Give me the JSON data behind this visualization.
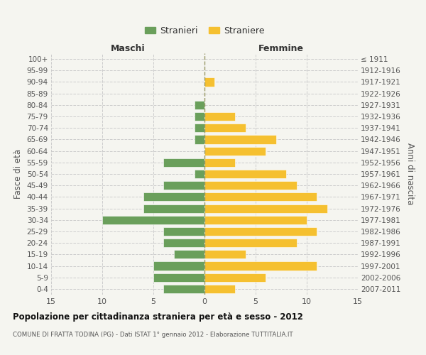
{
  "age_groups": [
    "100+",
    "95-99",
    "90-94",
    "85-89",
    "80-84",
    "75-79",
    "70-74",
    "65-69",
    "60-64",
    "55-59",
    "50-54",
    "45-49",
    "40-44",
    "35-39",
    "30-34",
    "25-29",
    "20-24",
    "15-19",
    "10-14",
    "5-9",
    "0-4"
  ],
  "birth_years": [
    "≤ 1911",
    "1912-1916",
    "1917-1921",
    "1922-1926",
    "1927-1931",
    "1932-1936",
    "1937-1941",
    "1942-1946",
    "1947-1951",
    "1952-1956",
    "1957-1961",
    "1962-1966",
    "1967-1971",
    "1972-1976",
    "1977-1981",
    "1982-1986",
    "1987-1991",
    "1992-1996",
    "1997-2001",
    "2002-2006",
    "2007-2011"
  ],
  "males": [
    0,
    0,
    0,
    0,
    1,
    1,
    1,
    1,
    0,
    4,
    1,
    4,
    6,
    6,
    10,
    4,
    4,
    3,
    5,
    5,
    4
  ],
  "females": [
    0,
    0,
    1,
    0,
    0,
    3,
    4,
    7,
    6,
    3,
    8,
    9,
    11,
    12,
    10,
    11,
    9,
    4,
    11,
    6,
    3
  ],
  "male_color": "#6a9f5b",
  "female_color": "#f5c030",
  "background_color": "#f5f5f0",
  "grid_color": "#cccccc",
  "title": "Popolazione per cittadinanza straniera per età e sesso - 2012",
  "subtitle": "COMUNE DI FRATTA TODINA (PG) - Dati ISTAT 1° gennaio 2012 - Elaborazione TUTTITALIA.IT",
  "xlabel_left": "Maschi",
  "xlabel_right": "Femmine",
  "ylabel_left": "Fasce di età",
  "ylabel_right": "Anni di nascita",
  "legend_male": "Stranieri",
  "legend_female": "Straniere",
  "xlim": 15,
  "dashed_line_color": "#999966"
}
